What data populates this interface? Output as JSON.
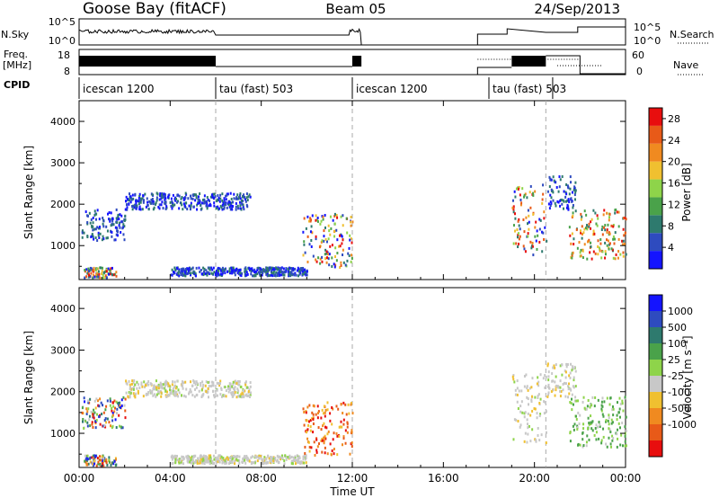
{
  "header": {
    "station": "Goose Bay (fitACF)",
    "beam": "Beam 05",
    "date": "24/Sep/2013"
  },
  "strips": {
    "nsky_label": "N.Sky",
    "nsky_ticks": [
      "10^5",
      "10^0"
    ],
    "nsearch_label": "N.Search",
    "nsearch_ticks": [
      "10^5",
      "10^0"
    ],
    "freq_label_1": "Freq.",
    "freq_label_2": "[MHz]",
    "freq_ticks": [
      "18",
      "8"
    ],
    "nave_label": "Nave",
    "nave_ticks": [
      "60",
      "0"
    ],
    "cpid_label": "CPID",
    "cpid_segments": [
      {
        "name": "icescan 1200",
        "start": 0.0
      },
      {
        "name": "tau (fast) 503",
        "start": 6.0
      },
      {
        "name": "icescan 1200",
        "start": 12.0
      },
      {
        "name": "tau (fast) 503",
        "start": 18.0
      }
    ]
  },
  "colors": {
    "power": [
      "#1414ff",
      "#2e4bbf",
      "#2e7a6e",
      "#4aa24a",
      "#8ed44a",
      "#f0c030",
      "#f08a20",
      "#e85a18",
      "#e80e0e"
    ],
    "velocity": [
      "#1414ff",
      "#2e4bbf",
      "#2e7a6e",
      "#4aa24a",
      "#8ed44a",
      "#c8c8c8",
      "#f0c030",
      "#f08a20",
      "#e85a18",
      "#e80e0e"
    ]
  },
  "chart_data": [
    {
      "type": "heatmap",
      "ylabel": "Slant Range [km]",
      "ylim": [
        180,
        4500
      ],
      "yticks": [
        "1000",
        "2000",
        "3000",
        "4000"
      ],
      "colorbar_label": "Power [dB]",
      "colorbar_ticks": [
        "4",
        "8",
        "12",
        "16",
        "20",
        "24",
        "28"
      ],
      "colorbar_range": [
        0,
        30
      ],
      "bands": [
        {
          "t0": 0.1,
          "t1": 2.0,
          "r0": 1150,
          "r1": 1900,
          "level": "low"
        },
        {
          "t0": 2.0,
          "t1": 7.5,
          "r0": 1900,
          "r1": 2300,
          "level": "low"
        },
        {
          "t0": 0.2,
          "t1": 1.6,
          "r0": 250,
          "r1": 500,
          "level": "mixed"
        },
        {
          "t0": 4.0,
          "t1": 10.0,
          "r0": 300,
          "r1": 500,
          "level": "low"
        },
        {
          "t0": 9.8,
          "t1": 12.0,
          "r0": 500,
          "r1": 1800,
          "level": "mixed"
        },
        {
          "t0": 19.0,
          "t1": 20.5,
          "r0": 800,
          "r1": 2500,
          "level": "mixed"
        },
        {
          "t0": 20.5,
          "t1": 21.8,
          "r0": 1900,
          "r1": 2700,
          "level": "low"
        },
        {
          "t0": 21.5,
          "t1": 24.0,
          "r0": 700,
          "r1": 1900,
          "level": "high"
        }
      ]
    },
    {
      "type": "heatmap",
      "ylabel": "Slant Range [km]",
      "xlabel": "Time UT",
      "ylim": [
        180,
        4500
      ],
      "yticks": [
        "1000",
        "2000",
        "3000",
        "4000"
      ],
      "xticks": [
        "00:00",
        "04:00",
        "08:00",
        "12:00",
        "16:00",
        "20:00",
        "00:00"
      ],
      "xlim": [
        0,
        24
      ],
      "colorbar_label": "Velocity [m s⁻¹]",
      "colorbar_ticks": [
        "1000",
        "500",
        "100",
        "25",
        "-25",
        "-100",
        "-500",
        "-1000"
      ],
      "bands": [
        {
          "t0": 0.1,
          "t1": 2.0,
          "r0": 1150,
          "r1": 1900,
          "level": "mixed"
        },
        {
          "t0": 2.0,
          "t1": 7.5,
          "r0": 1900,
          "r1": 2300,
          "level": "gray"
        },
        {
          "t0": 0.2,
          "t1": 1.6,
          "r0": 250,
          "r1": 500,
          "level": "mixed"
        },
        {
          "t0": 4.0,
          "t1": 10.0,
          "r0": 300,
          "r1": 500,
          "level": "gray"
        },
        {
          "t0": 9.8,
          "t1": 12.0,
          "r0": 500,
          "r1": 1800,
          "level": "warm"
        },
        {
          "t0": 19.0,
          "t1": 20.5,
          "r0": 800,
          "r1": 2500,
          "level": "gray"
        },
        {
          "t0": 20.5,
          "t1": 21.8,
          "r0": 1900,
          "r1": 2700,
          "level": "gray"
        },
        {
          "t0": 21.5,
          "t1": 24.0,
          "r0": 700,
          "r1": 1900,
          "level": "green"
        }
      ]
    }
  ]
}
